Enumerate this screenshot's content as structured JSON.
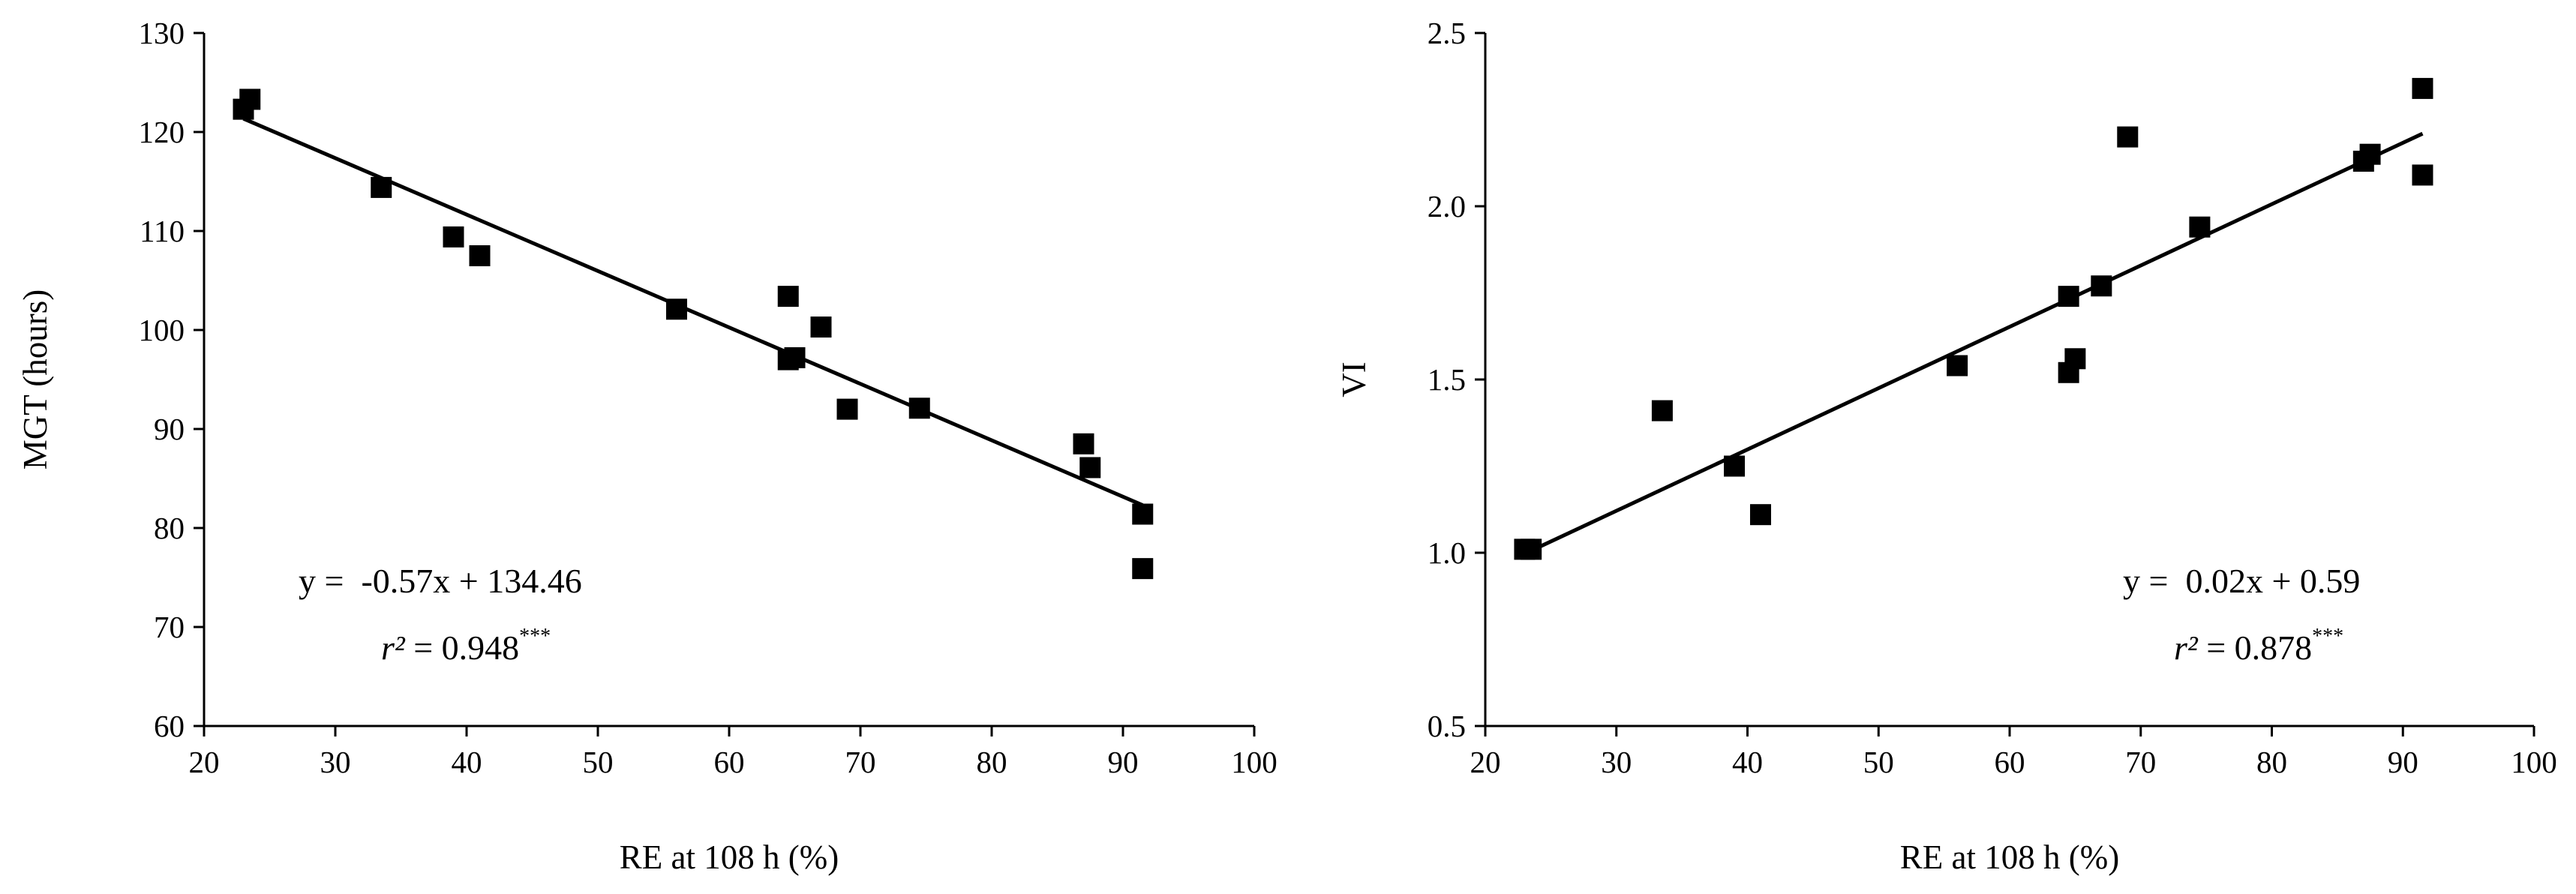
{
  "chart_data": [
    {
      "type": "scatter",
      "title": "",
      "xlabel": "RE at 108 h (%)",
      "ylabel": "MGT (hours)",
      "xlim": [
        20,
        100
      ],
      "ylim": [
        60,
        130
      ],
      "xticks": [
        "20",
        "30",
        "40",
        "50",
        "60",
        "70",
        "80",
        "90",
        "100"
      ],
      "yticks": [
        "60",
        "70",
        "80",
        "90",
        "100",
        "110",
        "120",
        "130"
      ],
      "points": [
        {
          "x": 23.0,
          "y": 122.3
        },
        {
          "x": 23.5,
          "y": 123.3
        },
        {
          "x": 33.5,
          "y": 114.4
        },
        {
          "x": 39.0,
          "y": 109.4
        },
        {
          "x": 41.0,
          "y": 107.5
        },
        {
          "x": 56.0,
          "y": 102.1
        },
        {
          "x": 64.5,
          "y": 103.4
        },
        {
          "x": 64.5,
          "y": 97.0
        },
        {
          "x": 65.0,
          "y": 97.2
        },
        {
          "x": 67.0,
          "y": 100.3
        },
        {
          "x": 69.0,
          "y": 92.0
        },
        {
          "x": 74.5,
          "y": 92.1
        },
        {
          "x": 87.0,
          "y": 88.5
        },
        {
          "x": 87.5,
          "y": 86.1
        },
        {
          "x": 91.5,
          "y": 81.4
        },
        {
          "x": 91.5,
          "y": 75.9
        }
      ],
      "fit": {
        "slope": -0.57,
        "intercept": 134.46,
        "x_range": [
          23,
          91.5
        ]
      },
      "equation": "y =  -0.57x + 134.46",
      "r2_symbol": "r²",
      "r2_text": " = 0.948",
      "r2_sig": "***"
    },
    {
      "type": "scatter",
      "title": "",
      "xlabel": "RE at 108 h (%)",
      "ylabel": "VI",
      "xlim": [
        20,
        100
      ],
      "ylim": [
        0.5,
        2.5
      ],
      "xticks": [
        "20",
        "30",
        "40",
        "50",
        "60",
        "70",
        "80",
        "90",
        "100"
      ],
      "yticks": [
        "0.5",
        "1.0",
        "1.5",
        "2.0",
        "2.5"
      ],
      "points": [
        {
          "x": 23.0,
          "y": 1.01
        },
        {
          "x": 23.5,
          "y": 1.01
        },
        {
          "x": 33.5,
          "y": 1.41
        },
        {
          "x": 39.0,
          "y": 1.25
        },
        {
          "x": 41.0,
          "y": 1.11
        },
        {
          "x": 56.0,
          "y": 1.54
        },
        {
          "x": 64.5,
          "y": 1.52
        },
        {
          "x": 64.5,
          "y": 1.74
        },
        {
          "x": 65.0,
          "y": 1.56
        },
        {
          "x": 67.0,
          "y": 1.77
        },
        {
          "x": 69.0,
          "y": 2.2
        },
        {
          "x": 74.5,
          "y": 1.94
        },
        {
          "x": 87.0,
          "y": 2.13
        },
        {
          "x": 87.5,
          "y": 2.15
        },
        {
          "x": 91.5,
          "y": 2.09
        },
        {
          "x": 91.5,
          "y": 2.34
        }
      ],
      "fit": {
        "slope": 0.0177,
        "intercept": 0.59,
        "x_range": [
          23,
          91.5
        ]
      },
      "equation": "y =  0.02x + 0.59",
      "r2_symbol": "r²",
      "r2_text": " = 0.878",
      "r2_sig": "***"
    }
  ]
}
